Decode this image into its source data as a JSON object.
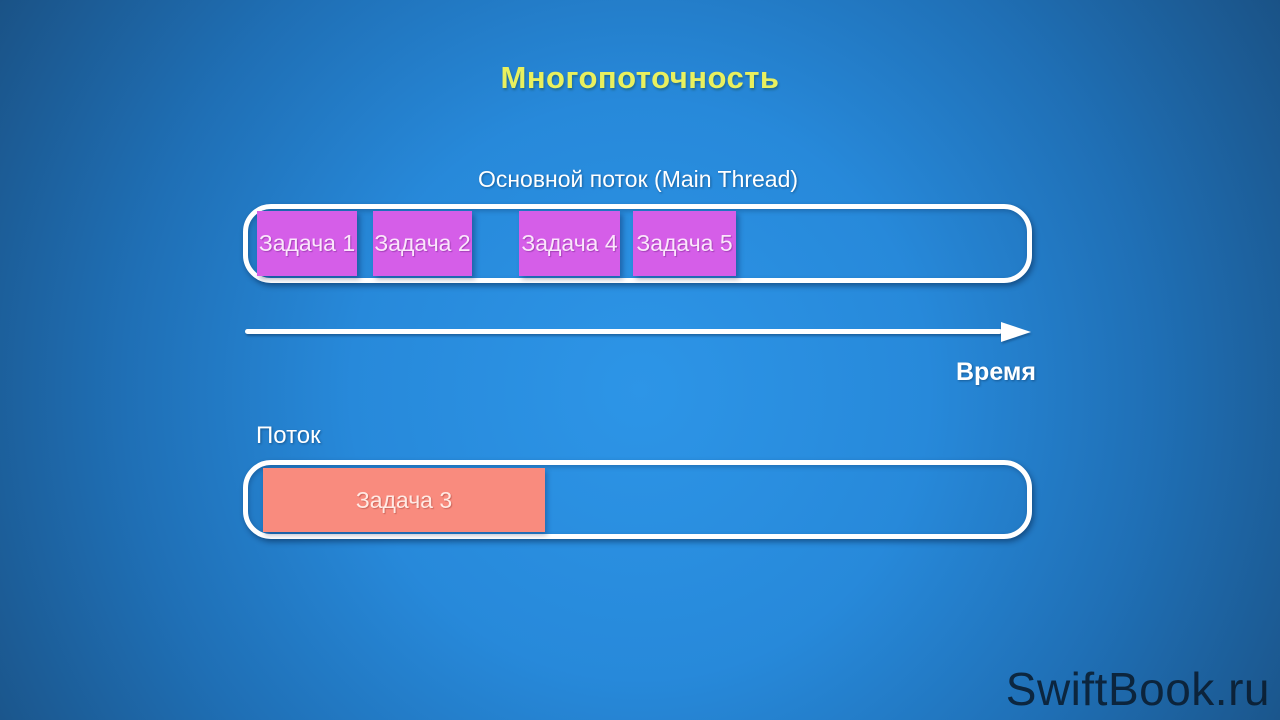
{
  "title": "Многопоточность",
  "colors": {
    "title_text": "#e9f05e",
    "task_purple": "#d55ee8",
    "task_salmon": "#f98b7e",
    "background_center": "#2d95e7",
    "background_edge": "#1a5184",
    "container_border": "#ffffff"
  },
  "main_thread": {
    "label": "Основной поток (Main Thread)",
    "tasks": [
      {
        "label": "Задача 1"
      },
      {
        "label": "Задача 2"
      },
      {
        "label": "Задача 4"
      },
      {
        "label": "Задача 5"
      }
    ]
  },
  "timeline": {
    "label": "Время"
  },
  "secondary_thread": {
    "label": "Поток",
    "tasks": [
      {
        "label": "Задача 3"
      }
    ]
  },
  "watermark": "SwiftBook.ru"
}
